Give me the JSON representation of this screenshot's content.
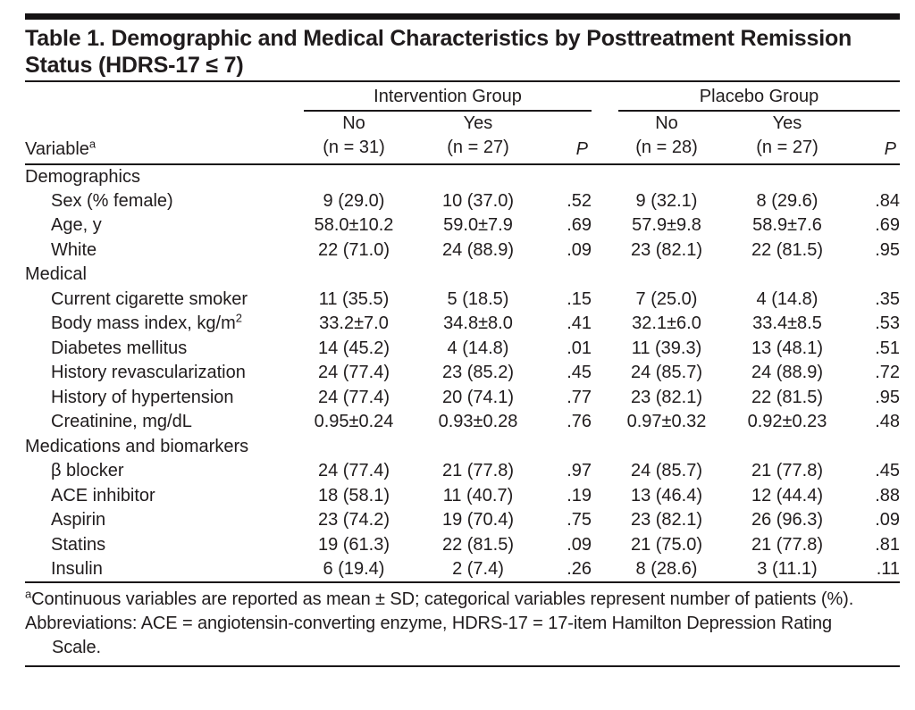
{
  "page": {
    "title_lines": [
      "Table 1. Demographic and Medical Characteristics by Posttreatment Remission",
      "Status (HDRS-17 ≤ 7)"
    ]
  },
  "table": {
    "header": {
      "variable_label": "Variable",
      "variable_marker": "a",
      "groups": [
        {
          "label": "Intervention Group",
          "no_label": "No",
          "no_n": "(n = 31)",
          "yes_label": "Yes",
          "yes_n": "(n = 27)",
          "p_label": "P"
        },
        {
          "label": "Placebo Group",
          "no_label": "No",
          "no_n": "(n = 28)",
          "yes_label": "Yes",
          "yes_n": "(n = 27)",
          "p_label": "P"
        }
      ]
    },
    "sections": [
      {
        "label": "Demographics",
        "rows": [
          {
            "label": "Sex (% female)",
            "values": [
              "9 (29.0)",
              "10 (37.0)",
              ".52",
              "9 (32.1)",
              "8 (29.6)",
              ".84"
            ]
          },
          {
            "label": "Age, y",
            "values": [
              "58.0±10.2",
              "59.0±7.9",
              ".69",
              "57.9±9.8",
              "58.9±7.6",
              ".69"
            ]
          },
          {
            "label": "White",
            "values": [
              "22 (71.0)",
              "24 (88.9)",
              ".09",
              "23 (82.1)",
              "22 (81.5)",
              ".95"
            ]
          }
        ]
      },
      {
        "label": "Medical",
        "rows": [
          {
            "label": "Current cigarette smoker",
            "values": [
              "11 (35.5)",
              "5 (18.5)",
              ".15",
              "7 (25.0)",
              "4 (14.8)",
              ".35"
            ]
          },
          {
            "label": "Body mass index, kg/m",
            "label_sup": "2",
            "values": [
              "33.2±7.0",
              "34.8±8.0",
              ".41",
              "32.1±6.0",
              "33.4±8.5",
              ".53"
            ]
          },
          {
            "label": "Diabetes mellitus",
            "values": [
              "14 (45.2)",
              "4 (14.8)",
              ".01",
              "11 (39.3)",
              "13 (48.1)",
              ".51"
            ]
          },
          {
            "label": "History revascularization",
            "values": [
              "24 (77.4)",
              "23 (85.2)",
              ".45",
              "24 (85.7)",
              "24 (88.9)",
              ".72"
            ]
          },
          {
            "label": "History of hypertension",
            "values": [
              "24 (77.4)",
              "20 (74.1)",
              ".77",
              "23 (82.1)",
              "22 (81.5)",
              ".95"
            ]
          },
          {
            "label": "Creatinine, mg/dL",
            "values": [
              "0.95±0.24",
              "0.93±0.28",
              ".76",
              "0.97±0.32",
              "0.92±0.23",
              ".48"
            ]
          }
        ]
      },
      {
        "label": "Medications and biomarkers",
        "rows": [
          {
            "label": "β blocker",
            "values": [
              "24 (77.4)",
              "21 (77.8)",
              ".97",
              "24 (85.7)",
              "21 (77.8)",
              ".45"
            ]
          },
          {
            "label": "ACE inhibitor",
            "values": [
              "18 (58.1)",
              "11 (40.7)",
              ".19",
              "13 (46.4)",
              "12 (44.4)",
              ".88"
            ]
          },
          {
            "label": "Aspirin",
            "values": [
              "23 (74.2)",
              "19 (70.4)",
              ".75",
              "23 (82.1)",
              "26 (96.3)",
              ".09"
            ]
          },
          {
            "label": "Statins",
            "values": [
              "19 (61.3)",
              "22 (81.5)",
              ".09",
              "21 (75.0)",
              "21 (77.8)",
              ".81"
            ]
          },
          {
            "label": "Insulin",
            "values": [
              "6 (19.4)",
              "2 (7.4)",
              ".26",
              "8 (28.6)",
              "3 (11.1)",
              ".11"
            ]
          }
        ]
      }
    ]
  },
  "footnotes": [
    {
      "marker": "a",
      "text": "Continuous variables are reported as mean ± SD; categorical variables represent number of patients (%)."
    },
    {
      "marker": "",
      "text": "Abbreviations: ACE = angiotensin-converting enzyme, HDRS-17 = 17-item Hamilton Depression Rating Scale."
    }
  ],
  "colors": {
    "background": "#ffffff",
    "text": "#201c1d",
    "rule": "#1a1718"
  }
}
